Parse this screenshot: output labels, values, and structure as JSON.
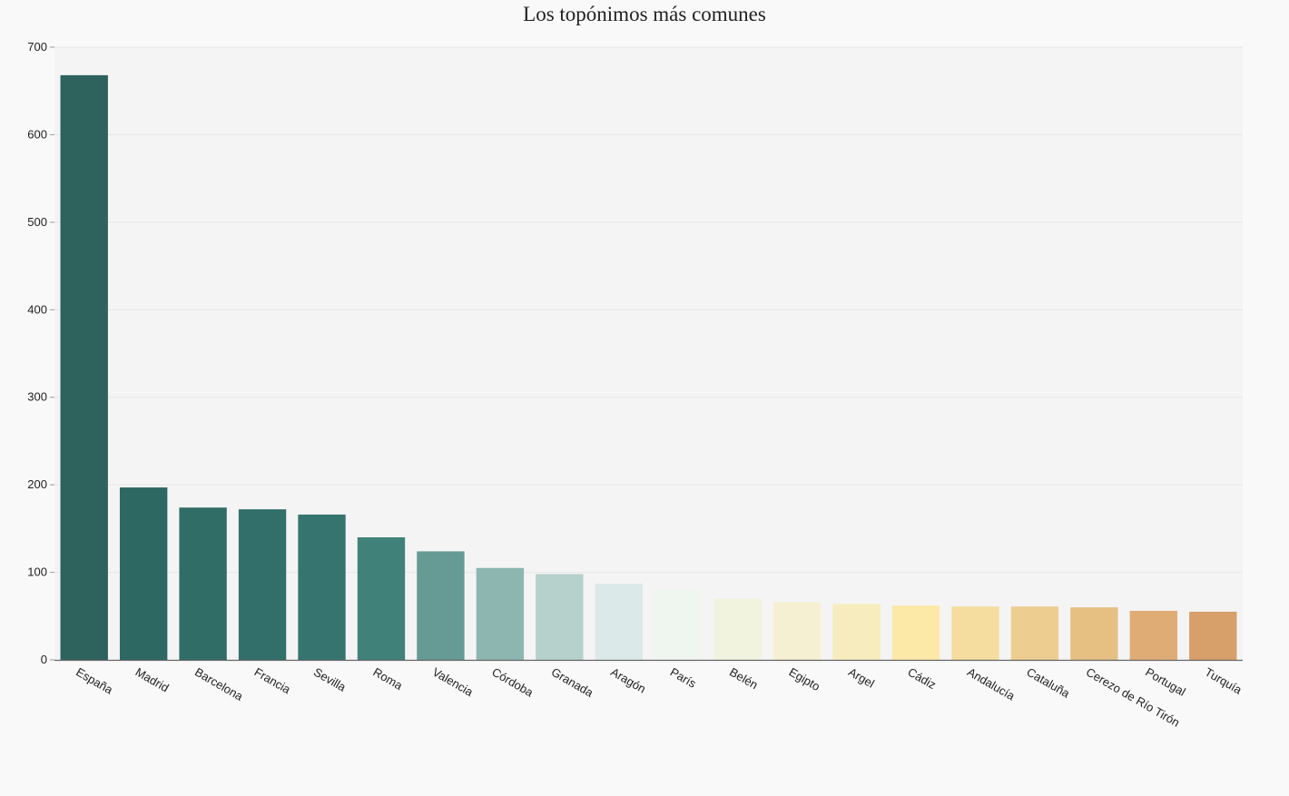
{
  "chart_data": {
    "type": "bar",
    "title": "Los topónimos más comunes",
    "xlabel": "",
    "ylabel": "",
    "ylim": [
      0,
      700
    ],
    "yticks": [
      0,
      100,
      200,
      300,
      400,
      500,
      600,
      700
    ],
    "grid": true,
    "categories": [
      "España",
      "Madrid",
      "Barcelona",
      "Francia",
      "Sevilla",
      "Roma",
      "Valencia",
      "Córdoba",
      "Granada",
      "Aragón",
      "París",
      "Belén",
      "Egipto",
      "Argel",
      "Cádiz",
      "Andalucía",
      "Cataluña",
      "Cerezo de Río Tirón",
      "Portugal",
      "Turquía"
    ],
    "values": [
      668,
      197,
      174,
      172,
      166,
      140,
      124,
      105,
      98,
      87,
      80,
      70,
      66,
      64,
      62,
      61,
      61,
      60,
      56,
      55
    ],
    "colors": [
      "#2d625d",
      "#2e6863",
      "#316d67",
      "#336f6a",
      "#36756f",
      "#40817a",
      "#669a94",
      "#8db6b1",
      "#b6d1cc",
      "#dbe9e8",
      "#eff5ef",
      "#f1f3df",
      "#f5f0d1",
      "#f7ecbd",
      "#fce9a7",
      "#f5dd9f",
      "#eecd90",
      "#e6bf83",
      "#e0ac75",
      "#d79f69"
    ]
  }
}
